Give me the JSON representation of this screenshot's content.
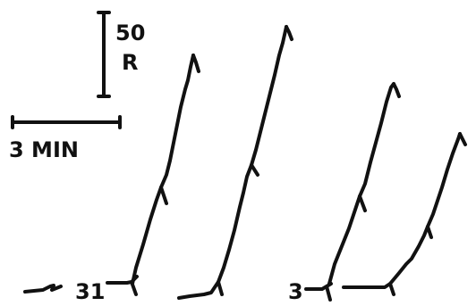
{
  "chart_data": {
    "type": "line",
    "title": "",
    "scale_bars": {
      "vertical": {
        "value": "50",
        "unit": "R"
      },
      "horizontal": {
        "label": "3 MIN"
      }
    },
    "annotations": [
      "31",
      "3"
    ],
    "series": [
      {
        "label": "31",
        "points": [
          [
            0,
            0
          ],
          [
            0.1,
            18
          ],
          [
            0.3,
            60
          ],
          [
            0.5,
            110
          ],
          [
            0.6,
            140
          ],
          [
            0.75,
            175
          ],
          [
            0.85,
            225
          ],
          [
            0.95,
            250
          ],
          [
            1.05,
            270
          ]
        ]
      },
      {
        "points": [
          [
            0,
            0
          ],
          [
            0.1,
            20
          ],
          [
            0.25,
            60
          ],
          [
            0.35,
            100
          ],
          [
            0.45,
            150
          ],
          [
            0.55,
            200
          ],
          [
            0.65,
            245
          ],
          [
            0.8,
            285
          ]
        ]
      },
      {
        "label": "3",
        "points": [
          [
            0,
            0
          ],
          [
            0.1,
            18
          ],
          [
            0.3,
            60
          ],
          [
            0.45,
            120
          ],
          [
            0.6,
            160
          ],
          [
            0.72,
            185
          ],
          [
            0.8,
            210
          ],
          [
            0.92,
            240
          ]
        ]
      },
      {
        "points": [
          [
            0,
            0
          ],
          [
            0.2,
            25
          ],
          [
            0.35,
            45
          ],
          [
            0.5,
            85
          ],
          [
            0.6,
            115
          ],
          [
            0.7,
            140
          ],
          [
            0.8,
            170
          ]
        ]
      }
    ]
  }
}
